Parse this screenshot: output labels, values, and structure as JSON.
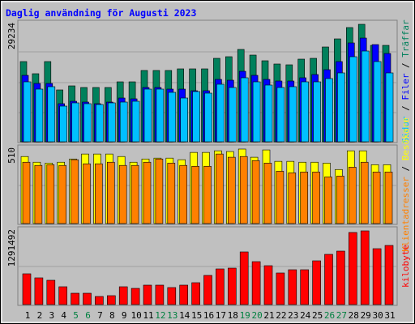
{
  "chart_data": [
    {
      "type": "bar",
      "title": "Daglig användning för Augusti 2023",
      "ylim": [
        0,
        29234
      ],
      "yticks": [
        29234
      ],
      "legend_separator": " / ",
      "series": [
        {
          "name": "Träffar",
          "color": "#00805c",
          "values": [
            19960,
            16935,
            19960,
            12903,
            13911,
            13508,
            13508,
            13508,
            14918,
            14918,
            17742,
            17742,
            17742,
            18145,
            18145,
            18145,
            20767,
            21170,
            22984,
            21573,
            20161,
            19355,
            19153,
            20565,
            20767,
            23589,
            25605,
            28427,
            29234,
            23992,
            23992
          ]
        },
        {
          "name": "Filer",
          "color": "#0000ff",
          "values": [
            16531,
            14515,
            14515,
            9475,
            10080,
            9878,
            9475,
            9878,
            10886,
            10685,
            13507,
            13507,
            13104,
            13104,
            12701,
            12701,
            15523,
            15322,
            17539,
            16531,
            15523,
            15120,
            15120,
            15926,
            16733,
            17942,
            19958,
            24595,
            25805,
            24192,
            21974
          ]
        },
        {
          "name": "Sidor",
          "color": "#00c0ff",
          "values": [
            14918,
            13104,
            13709,
            8870,
            9677,
            9475,
            9274,
            9677,
            9878,
            10080,
            13104,
            13104,
            12298,
            10886,
            12499,
            12096,
            14314,
            13507,
            15926,
            14918,
            14112,
            13507,
            13709,
            14918,
            14918,
            15725,
            17136,
            21168,
            22579,
            19958,
            17136
          ]
        }
      ]
    },
    {
      "type": "bar",
      "ylim": [
        0,
        510
      ],
      "yticks": [
        510
      ],
      "legend_separator": " / ",
      "series": [
        {
          "name": "Besökare",
          "color": "#ffff00",
          "values": [
            459,
            420,
            414,
            420,
            442,
            476,
            476,
            476,
            459,
            420,
            442,
            448,
            448,
            437,
            487,
            487,
            498,
            493,
            510,
            454,
            504,
            426,
            426,
            420,
            420,
            414,
            370,
            498,
            498,
            403,
            403
          ]
        },
        {
          "name": "Klientadresser",
          "color": "#ff8000",
          "values": [
            420,
            398,
            403,
            398,
            437,
            409,
            409,
            420,
            398,
            398,
            420,
            442,
            414,
            398,
            392,
            392,
            476,
            454,
            459,
            431,
            414,
            358,
            347,
            353,
            353,
            319,
            325,
            386,
            420,
            353,
            353
          ]
        }
      ]
    },
    {
      "type": "bar",
      "ylim": [
        0,
        1291492
      ],
      "yticks": [
        1291492
      ],
      "series": [
        {
          "name": "kilobyte",
          "color": "#ff0000",
          "values": [
            539296,
            468336,
            425760,
            312224,
            198688,
            198688,
            141920,
            156112,
            312224,
            283840,
            340608,
            340608,
            298032,
            340608,
            383184,
            510912,
            624448,
            638640,
            922480,
            752176,
            681216,
            553488,
            610256,
            610256,
            766368,
            879904,
            936672,
            1263088,
            1291492,
            979248,
            1036016
          ]
        }
      ],
      "categories": [
        "1",
        "2",
        "3",
        "4",
        "5",
        "6",
        "7",
        "8",
        "9",
        "10",
        "11",
        "12",
        "13",
        "14",
        "15",
        "16",
        "17",
        "18",
        "19",
        "20",
        "21",
        "22",
        "23",
        "24",
        "25",
        "26",
        "27",
        "28",
        "29",
        "30",
        "31"
      ],
      "highlight_indices": [
        4,
        5,
        11,
        12,
        18,
        19,
        25,
        26
      ],
      "highlight_color": "#008040"
    }
  ]
}
